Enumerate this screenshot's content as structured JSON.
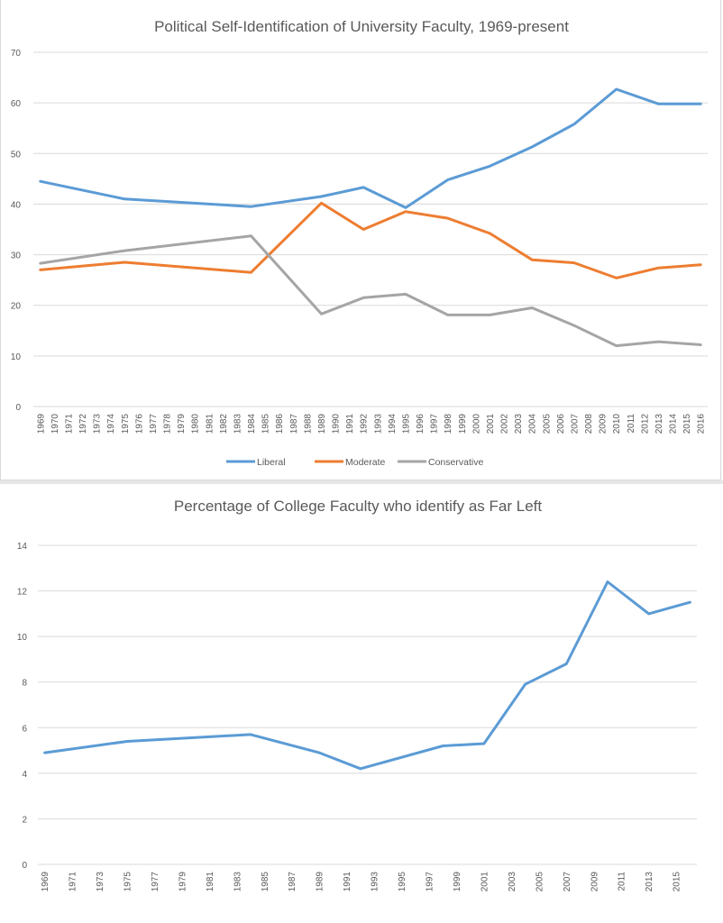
{
  "chart_data": [
    {
      "type": "line",
      "title": "Political Self-Identification of University Faculty, 1969-present",
      "xlabel": "",
      "ylabel": "",
      "ylim": [
        0,
        70
      ],
      "yticks": [
        0,
        10,
        20,
        30,
        40,
        50,
        60,
        70
      ],
      "grid": true,
      "legend_position": "bottom",
      "x": [
        1969,
        1970,
        1971,
        1972,
        1973,
        1974,
        1975,
        1976,
        1977,
        1978,
        1979,
        1980,
        1981,
        1982,
        1983,
        1984,
        1985,
        1986,
        1987,
        1988,
        1989,
        1990,
        1991,
        1992,
        1993,
        1994,
        1995,
        1996,
        1997,
        1998,
        1999,
        2000,
        2001,
        2002,
        2003,
        2004,
        2005,
        2006,
        2007,
        2008,
        2009,
        2010,
        2011,
        2012,
        2013,
        2014,
        2015,
        2016
      ],
      "xtick_labels": [
        "1969",
        "1970",
        "1971",
        "1972",
        "1973",
        "1974",
        "1975",
        "1976",
        "1977",
        "1978",
        "1979",
        "1980",
        "1981",
        "1982",
        "1983",
        "1984",
        "1985",
        "1986",
        "1987",
        "1988",
        "1989",
        "1990",
        "1991",
        "1992",
        "1993",
        "1994",
        "1995",
        "1996",
        "1997",
        "1998",
        "1999",
        "2000",
        "2001",
        "2002",
        "2003",
        "2004",
        "2005",
        "2006",
        "2007",
        "2008",
        "2009",
        "2010",
        "2011",
        "2012",
        "2013",
        "2014",
        "2015",
        "2016"
      ],
      "survey_years": [
        1969,
        1975,
        1984,
        1989,
        1992,
        1995,
        1998,
        2001,
        2004,
        2007,
        2010,
        2013,
        2016
      ],
      "series": [
        {
          "name": "Liberal",
          "color": "#5b9bd5",
          "values": [
            44.5,
            41.0,
            39.5,
            41.5,
            43.3,
            39.3,
            44.8,
            47.5,
            51.3,
            55.8,
            62.7,
            59.8,
            59.8
          ]
        },
        {
          "name": "Moderate",
          "color": "#ed7d31",
          "values": [
            27.0,
            28.5,
            26.5,
            40.2,
            35.0,
            38.5,
            37.2,
            34.2,
            29.0,
            28.4,
            25.4,
            27.4,
            28.0
          ]
        },
        {
          "name": "Conservative",
          "color": "#a5a5a5",
          "values": [
            28.3,
            30.8,
            33.7,
            18.3,
            21.5,
            22.2,
            18.1,
            18.1,
            19.5,
            16.0,
            12.0,
            12.8,
            12.2
          ]
        }
      ]
    },
    {
      "type": "line",
      "title": "Percentage of College  Faculty who identify as Far Left",
      "xlabel": "",
      "ylabel": "",
      "ylim": [
        0,
        14
      ],
      "yticks": [
        0,
        2,
        4,
        6,
        8,
        10,
        12,
        14
      ],
      "grid": true,
      "legend_position": "none",
      "x_range": [
        1969,
        2016
      ],
      "xtick_labels": [
        "1969",
        "1971",
        "1973",
        "1975",
        "1977",
        "1979",
        "1981",
        "1983",
        "1985",
        "1987",
        "1989",
        "1991",
        "1993",
        "1995",
        "1997",
        "1999",
        "2001",
        "2003",
        "2005",
        "2007",
        "2009",
        "2011",
        "2013",
        "2015"
      ],
      "series": [
        {
          "name": "Far Left",
          "color": "#5b9bd5",
          "x": [
            1969,
            1975,
            1984,
            1989,
            1992,
            1998,
            2001,
            2004,
            2007,
            2010,
            2013,
            2016
          ],
          "values": [
            4.9,
            5.4,
            5.7,
            4.9,
            4.2,
            5.2,
            5.3,
            7.9,
            8.8,
            12.4,
            11.0,
            11.5
          ]
        }
      ]
    }
  ]
}
